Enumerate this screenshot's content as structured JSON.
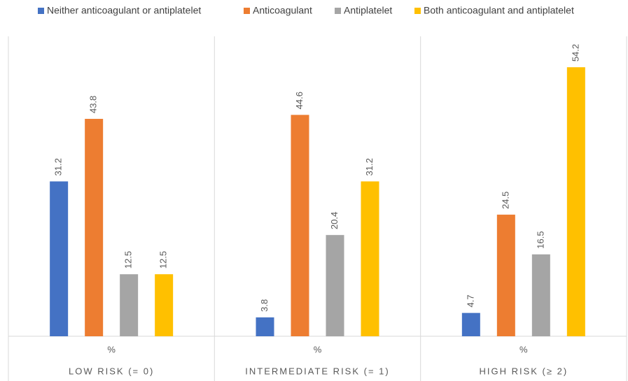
{
  "chart_data": {
    "type": "bar",
    "categories": [
      "LOW RISK (= 0)",
      "INTERMEDIATE RISK (= 1)",
      "HIGH RISK (≥ 2)"
    ],
    "category_sublabels": [
      "%",
      "%",
      "%"
    ],
    "series": [
      {
        "name": "Neither anticoagulant or antiplatelet",
        "color": "#4472c4",
        "values": [
          31.2,
          3.8,
          4.7
        ]
      },
      {
        "name": "Anticoagulant",
        "color": "#ed7d31",
        "values": [
          43.8,
          44.6,
          24.5
        ]
      },
      {
        "name": "Antiplatelet",
        "color": "#a5a5a5",
        "values": [
          12.5,
          20.4,
          16.5
        ]
      },
      {
        "name": "Both anticoagulant and antiplatelet",
        "color": "#ffc000",
        "values": [
          12.5,
          31.2,
          54.2
        ]
      }
    ],
    "ylim": [
      0,
      60
    ],
    "legend": "top"
  }
}
